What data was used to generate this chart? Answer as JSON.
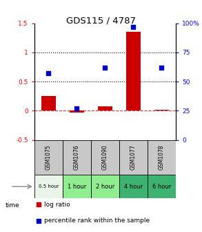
{
  "title": "GDS115 / 4787",
  "samples": [
    "GSM1075",
    "GSM1076",
    "GSM1090",
    "GSM1077",
    "GSM1078"
  ],
  "time_labels": [
    "0.5 hour",
    "1 hour",
    "2 hour",
    "4 hour",
    "6 hour"
  ],
  "time_colors": [
    "#e8f5e8",
    "#90EE90",
    "#90EE90",
    "#3CB371",
    "#3CB371"
  ],
  "log_ratio": [
    0.25,
    -0.03,
    0.08,
    1.35,
    0.02
  ],
  "percentile_pct": [
    57,
    27,
    62,
    97,
    62
  ],
  "bar_color": "#cc0000",
  "dot_color": "#0000cc",
  "ylim_left": [
    -0.5,
    1.5
  ],
  "ylim_right": [
    0,
    100
  ],
  "yticks_left": [
    -0.5,
    0.0,
    0.5,
    1.0,
    1.5
  ],
  "ytick_labels_left": [
    "-0.5",
    "0",
    "0.5",
    "1",
    "1.5"
  ],
  "yticks_right": [
    0,
    25,
    50,
    75,
    100
  ],
  "ytick_labels_right": [
    "0",
    "25",
    "50",
    "75",
    "100%"
  ],
  "hlines": [
    0.5,
    1.0
  ],
  "zero_line": 0.0,
  "legend_log": "log ratio",
  "legend_pct": "percentile rank within the sample",
  "bar_color_legend": "#cc0000",
  "dot_color_legend": "#0000cc",
  "sample_bg_color": "#c8c8c8",
  "bar_width": 0.5
}
